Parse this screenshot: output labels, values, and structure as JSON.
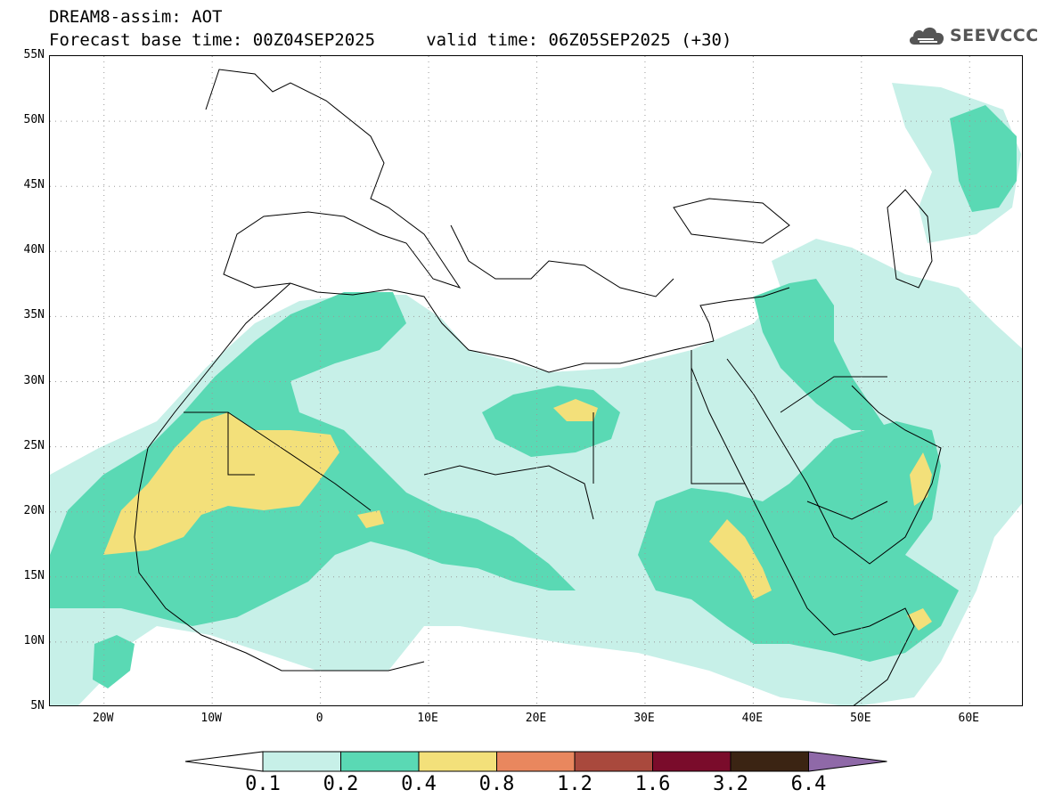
{
  "header": {
    "title_line1": "DREAM8-assim: AOT",
    "title_line2": "Forecast base time: 00Z04SEP2025     valid time: 06Z05SEP2025 (+30)",
    "logo_text": "SEEVCCC"
  },
  "map": {
    "lon_range": [
      -25,
      65
    ],
    "lat_range": [
      5,
      55
    ],
    "lat_ticks": [
      "55N",
      "50N",
      "45N",
      "40N",
      "35N",
      "30N",
      "25N",
      "20N",
      "15N",
      "10N",
      "5N"
    ],
    "lon_ticks": [
      "20W",
      "10W",
      "0",
      "10E",
      "20E",
      "30E",
      "40E",
      "50E",
      "60E"
    ]
  },
  "legend": {
    "labels": [
      "0.1",
      "0.2",
      "0.4",
      "0.8",
      "1.2",
      "1.6",
      "3.2",
      "6.4"
    ],
    "colors": [
      "#c7f0e8",
      "#5ad9b4",
      "#f3e07a",
      "#e9875e",
      "#a9493d",
      "#7a0c2b",
      "#3b2413",
      "#8f69a8"
    ]
  }
}
